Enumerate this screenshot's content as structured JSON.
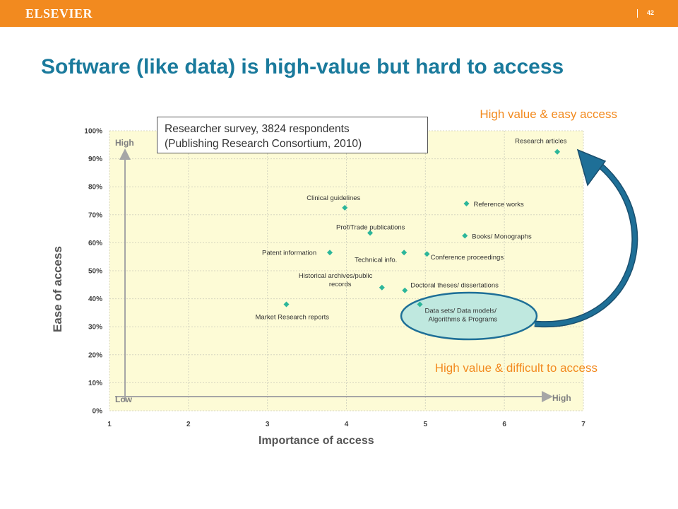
{
  "header": {
    "logo": "ELSEVIER",
    "page_number": "42",
    "accent_color": "#f28a1f"
  },
  "slide": {
    "title": "Software (like data) is high-value but hard to access",
    "title_color": "#1a7a9c",
    "corner_top": "High value & easy access",
    "corner_bottom": "High value & difficult to access"
  },
  "survey_note": {
    "line1": "Researcher survey, 3824 respondents",
    "line2": "(Publishing Research Consortium, 2010)"
  },
  "chart_data": {
    "type": "scatter",
    "xlabel": "Importance of access",
    "ylabel": "Ease of access",
    "xlim": [
      1,
      7
    ],
    "ylim": [
      0,
      100
    ],
    "x_ticks": [
      "1",
      "2",
      "3",
      "4",
      "5",
      "6",
      "7"
    ],
    "y_ticks": [
      "0%",
      "10%",
      "20%",
      "30%",
      "40%",
      "50%",
      "60%",
      "70%",
      "80%",
      "90%",
      "100%"
    ],
    "grid": true,
    "plot_background": "#fdfbd6",
    "marker_color": "#2cb69a",
    "axis_arrows": {
      "y_high": "High",
      "x_low": "Low",
      "x_high": "High"
    },
    "points": [
      {
        "label": "Research articles",
        "x": 6.67,
        "y": 92.5
      },
      {
        "label": "Clinical guidelines",
        "x": 3.98,
        "y": 72.5
      },
      {
        "label": "Reference works",
        "x": 5.52,
        "y": 74
      },
      {
        "label": "Prof/Trade publications",
        "x": 4.3,
        "y": 63.5
      },
      {
        "label": "Books/ Monographs",
        "x": 5.5,
        "y": 62.5
      },
      {
        "label": "Patent information",
        "x": 3.79,
        "y": 56.5
      },
      {
        "label": "Technical info.",
        "x": 4.73,
        "y": 56.5
      },
      {
        "label": "Conference proceedings",
        "x": 5.02,
        "y": 56
      },
      {
        "label": "Historical archives/public records",
        "x": 4.45,
        "y": 44
      },
      {
        "label": "Doctoral theses/ dissertations",
        "x": 4.74,
        "y": 43
      },
      {
        "label": "Data sets/ Data models/ Algorithms & Programs",
        "x": 4.93,
        "y": 38
      },
      {
        "label": "Market Research reports",
        "x": 3.24,
        "y": 38
      }
    ],
    "highlight": {
      "label": "Data sets/ Data models/ Algorithms & Programs",
      "color": "#bfe8df"
    }
  }
}
